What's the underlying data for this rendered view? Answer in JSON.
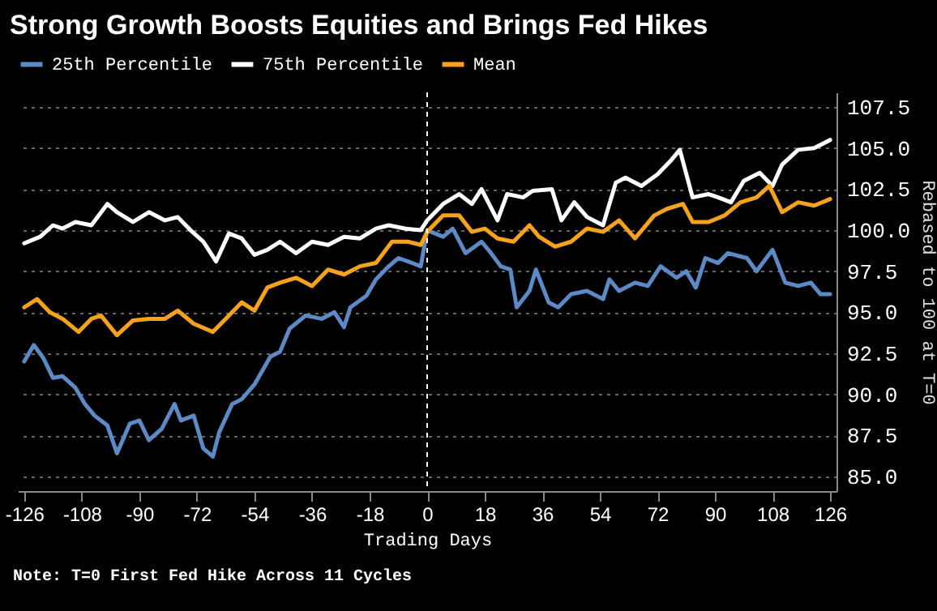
{
  "chart_data": {
    "type": "line",
    "title": "Strong Growth Boosts Equities and Brings Fed Hikes",
    "xlabel": "Trading Days",
    "ylabel": "Rebased to 100 at T=0",
    "annotations": [
      "Note: T=0 First Fed Hike Across 11 Cycles"
    ],
    "xlim": [
      -128,
      128
    ],
    "xticks": [
      -126,
      -108,
      -90,
      -72,
      -54,
      -36,
      -18,
      0,
      18,
      36,
      54,
      72,
      90,
      108,
      126
    ],
    "ylim": [
      84.1,
      108.4
    ],
    "yticks": [
      {
        "value": 85,
        "label": "85.0"
      },
      {
        "value": 87.5,
        "label": "87.5"
      },
      {
        "value": 90,
        "label": "90.0"
      },
      {
        "value": 92.5,
        "label": "92.5"
      },
      {
        "value": 95,
        "label": "95.0"
      },
      {
        "value": 97.5,
        "label": "97.5"
      },
      {
        "value": 100,
        "label": "100.0"
      },
      {
        "value": 102.5,
        "label": "102.5"
      },
      {
        "value": 105,
        "label": "105.0"
      },
      {
        "value": 107.5,
        "label": "107.5"
      }
    ],
    "grid": "y",
    "legend": "top left",
    "ref_lines": [
      {
        "axis": "x",
        "value": 0,
        "color": "#ffffff",
        "line_style": "dashed"
      }
    ],
    "series": [
      {
        "name": "25th Percentile",
        "color": "#5b8ac6",
        "x": [
          -126,
          -123,
          -120,
          -117,
          -114,
          -110,
          -107,
          -104,
          -100,
          -97,
          -93,
          -90,
          -87,
          -83,
          -79,
          -77,
          -73,
          -70,
          -67,
          -65,
          -61,
          -58,
          -54,
          -49,
          -46,
          -43,
          -38,
          -33,
          -29,
          -26,
          -24,
          -19,
          -16,
          -12,
          -9,
          -6,
          -2,
          0,
          5,
          8,
          12,
          17,
          20,
          23,
          26,
          28,
          32,
          34,
          38,
          41,
          45,
          50,
          55,
          57,
          60,
          65,
          69,
          73,
          78,
          81,
          84,
          87,
          91,
          94,
          100,
          103,
          108,
          112,
          116,
          120,
          123,
          126
        ],
        "values": [
          92.0,
          93.0,
          92.2,
          91.0,
          91.1,
          90.4,
          89.4,
          88.7,
          88.1,
          86.4,
          88.2,
          88.4,
          87.2,
          87.9,
          89.4,
          88.4,
          88.7,
          86.7,
          86.2,
          87.7,
          89.4,
          89.7,
          90.6,
          92.3,
          92.6,
          94.0,
          94.8,
          94.6,
          95.0,
          94.1,
          95.3,
          96.0,
          97.0,
          97.8,
          98.3,
          98.1,
          97.8,
          100.0,
          99.6,
          100.1,
          98.6,
          99.3,
          98.6,
          97.8,
          97.6,
          95.3,
          96.3,
          97.6,
          95.6,
          95.3,
          96.1,
          96.3,
          95.8,
          97.0,
          96.3,
          96.8,
          96.6,
          97.8,
          97.1,
          97.5,
          96.5,
          98.3,
          98.0,
          98.6,
          98.3,
          97.5,
          98.8,
          96.8,
          96.6,
          96.8,
          96.1,
          96.1
        ]
      },
      {
        "name": "75th Percentile",
        "color": "#ffffff",
        "x": [
          -126,
          -121,
          -117,
          -114,
          -110,
          -105,
          -100,
          -97,
          -92,
          -87,
          -82,
          -78,
          -74,
          -70,
          -66,
          -62,
          -58,
          -54,
          -50,
          -46,
          -41,
          -36,
          -31,
          -26,
          -21,
          -16,
          -12,
          -7,
          -2,
          0,
          5,
          10,
          14,
          17,
          22,
          25,
          30,
          33,
          39,
          42,
          46,
          50,
          55,
          59,
          62,
          67,
          72,
          76,
          79,
          83,
          88,
          91,
          95,
          99,
          104,
          108,
          111,
          116,
          121,
          126
        ],
        "values": [
          99.2,
          99.6,
          100.3,
          100.1,
          100.5,
          100.3,
          101.6,
          101.1,
          100.5,
          101.1,
          100.6,
          100.8,
          100.0,
          99.3,
          98.1,
          99.8,
          99.5,
          98.5,
          98.8,
          99.3,
          98.6,
          99.3,
          99.1,
          99.6,
          99.5,
          100.1,
          100.3,
          100.1,
          100.0,
          100.6,
          101.6,
          102.2,
          101.6,
          102.5,
          100.6,
          102.2,
          102.0,
          102.4,
          102.5,
          100.6,
          101.7,
          100.8,
          100.3,
          102.9,
          103.2,
          102.7,
          103.4,
          104.2,
          104.9,
          102.0,
          102.2,
          102.0,
          101.7,
          103.0,
          103.5,
          102.7,
          104.0,
          104.9,
          105.0,
          105.5
        ]
      },
      {
        "name": "Mean",
        "color": "#f7a21b",
        "x": [
          -126,
          -122,
          -118,
          -114,
          -109,
          -105,
          -102,
          -97,
          -92,
          -87,
          -82,
          -78,
          -73,
          -67,
          -63,
          -58,
          -54,
          -50,
          -46,
          -41,
          -36,
          -31,
          -26,
          -21,
          -16,
          -11,
          -6,
          -2,
          0,
          5,
          10,
          14,
          18,
          22,
          27,
          32,
          35,
          40,
          45,
          50,
          55,
          60,
          65,
          71,
          75,
          80,
          83,
          88,
          93,
          98,
          103,
          107,
          111,
          116,
          121,
          126
        ],
        "values": [
          95.3,
          95.8,
          95.0,
          94.6,
          93.8,
          94.6,
          94.8,
          93.6,
          94.5,
          94.6,
          94.6,
          95.1,
          94.3,
          93.8,
          94.6,
          95.6,
          95.1,
          96.5,
          96.8,
          97.1,
          96.6,
          97.6,
          97.3,
          97.8,
          98.0,
          99.3,
          99.3,
          99.1,
          99.9,
          100.9,
          100.9,
          99.9,
          100.1,
          99.5,
          99.3,
          100.3,
          99.6,
          99.0,
          99.3,
          100.1,
          99.9,
          100.6,
          99.5,
          100.9,
          101.3,
          101.6,
          100.5,
          100.5,
          100.9,
          101.7,
          102.0,
          102.7,
          101.1,
          101.7,
          101.5,
          101.9
        ]
      }
    ]
  }
}
